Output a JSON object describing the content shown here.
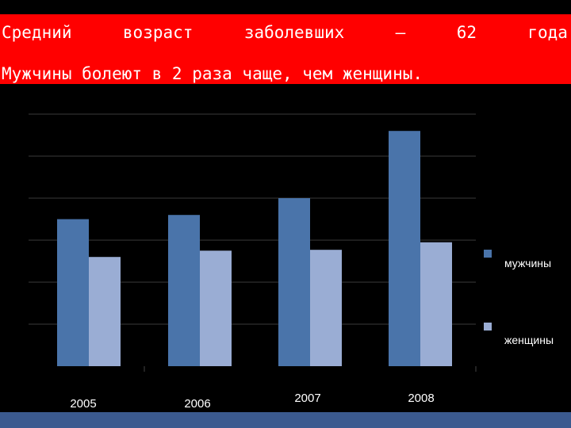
{
  "header": {
    "line1_words": [
      "Средний",
      "возраст",
      "заболевших",
      "–",
      "62",
      "года"
    ],
    "line2": "Мужчины болеют в 2 раза чаще, чем женщины."
  },
  "colors": {
    "banner": "#ff0000",
    "men": "#4a74aa",
    "women": "#9aadd4",
    "gridline": "#3a3a3a",
    "bottom_bar": "#3b5a8f"
  },
  "chart_data": {
    "type": "bar",
    "categories": [
      "2005",
      "2006",
      "2007",
      "2008"
    ],
    "series": [
      {
        "name": "мужчины",
        "values": [
          3.5,
          3.6,
          4.0,
          5.6
        ]
      },
      {
        "name": "женщины",
        "values": [
          2.6,
          2.75,
          2.77,
          2.95
        ]
      }
    ],
    "ylim": [
      0,
      6
    ],
    "grid": true,
    "legend_position": "right",
    "xlabel": "",
    "ylabel": ""
  }
}
